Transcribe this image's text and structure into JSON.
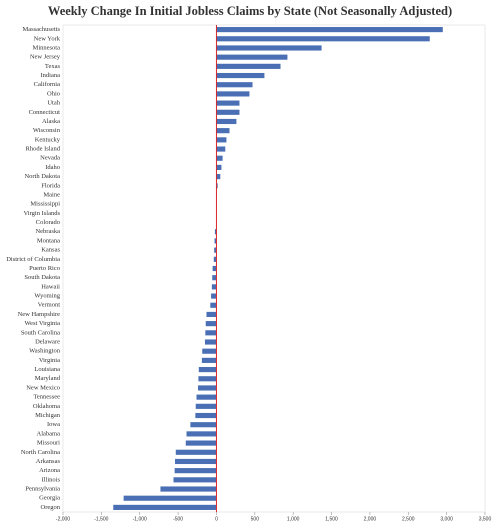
{
  "chart_data": {
    "type": "barh",
    "title": "Weekly Change In Initial Jobless Claims by State (Not Seasonally Adjusted)",
    "categories": [
      "Massachusetts",
      "New York",
      "Minnesota",
      "New Jersey",
      "Texas",
      "Indiana",
      "California",
      "Ohio",
      "Utah",
      "Connecticut",
      "Alaska",
      "Wisconsin",
      "Kentucky",
      "Rhode Island",
      "Nevada",
      "Idaho",
      "North Dakota",
      "Florida",
      "Maine",
      "Mississippi",
      "Virgin Islands",
      "Colorado",
      "Nebraska",
      "Montana",
      "Kansas",
      "District of Columbia",
      "Puerto Rico",
      "South Dakota",
      "Hawaii",
      "Wyoming",
      "Vermont",
      "New Hampshire",
      "West Virginia",
      "South Carolina",
      "Delaware",
      "Washington",
      "Virginia",
      "Louisiana",
      "Maryland",
      "New Mexico",
      "Tennessee",
      "Oklahoma",
      "Michigan",
      "Iowa",
      "Alabama",
      "Missouri",
      "North Carolina",
      "Arkansas",
      "Arizona",
      "Illinois",
      "Pennsylvania",
      "Georgia",
      "Oregon"
    ],
    "values": [
      2950,
      2780,
      1370,
      925,
      835,
      625,
      470,
      430,
      300,
      300,
      260,
      170,
      130,
      115,
      80,
      65,
      50,
      15,
      5,
      3,
      0,
      -5,
      -20,
      -25,
      -30,
      -35,
      -50,
      -55,
      -60,
      -70,
      -80,
      -130,
      -140,
      -145,
      -150,
      -185,
      -190,
      -230,
      -235,
      -240,
      -260,
      -270,
      -275,
      -340,
      -390,
      -400,
      -530,
      -540,
      -545,
      -560,
      -730,
      -1210,
      -1345
    ],
    "color": "#4a6fb5",
    "zero_line_color": "#d62728",
    "xlim": [
      -2000,
      3500
    ],
    "xticks": [
      {
        "value": -2000,
        "label": "-2,000"
      },
      {
        "value": -1500,
        "label": "-1,500"
      },
      {
        "value": -1000,
        "label": "-1,000"
      },
      -500,
      0,
      500,
      {
        "value": 1000,
        "label": "1,000"
      },
      {
        "value": 1500,
        "label": "1,500"
      },
      {
        "value": 2000,
        "label": "2,000"
      },
      {
        "value": 2500,
        "label": "2,500"
      },
      {
        "value": 3000,
        "label": "3,000"
      },
      {
        "value": 3500,
        "label": "3,500"
      }
    ]
  }
}
